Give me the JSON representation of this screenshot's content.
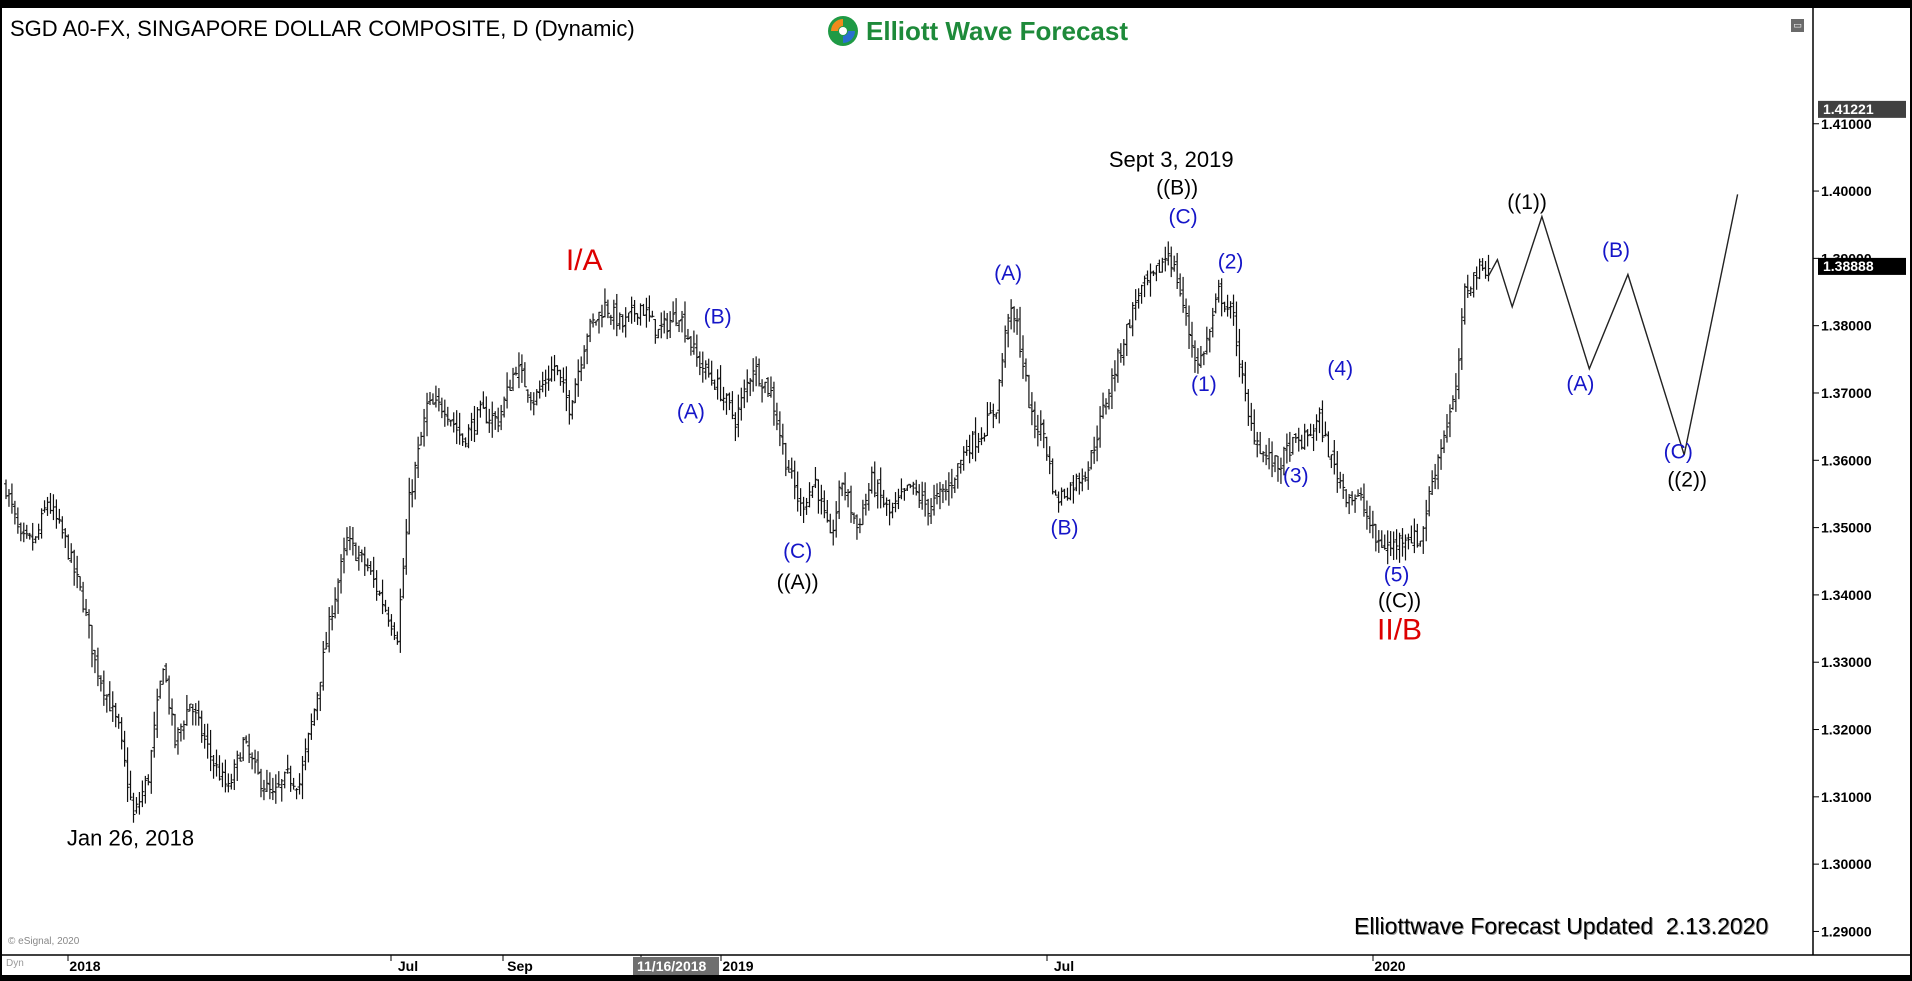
{
  "header": {
    "title": "SGD A0-FX, SINGAPORE DOLLAR COMPOSITE, D (Dynamic)",
    "brand": "Elliott Wave Forecast"
  },
  "footer": {
    "updated": "Elliottwave Forecast Updated  2.13.2020",
    "copyright": "© eSignal, 2020",
    "dyn": "Dyn"
  },
  "chart_data": {
    "type": "candlestick",
    "title": "SGD A0-FX, SINGAPORE DOLLAR COMPOSITE, D (Dynamic)",
    "ylim": [
      1.2865,
      1.4217
    ],
    "y_ticks": [
      "1.41000",
      "1.40000",
      "1.39000",
      "1.38000",
      "1.37000",
      "1.36000",
      "1.35000",
      "1.34000",
      "1.33000",
      "1.32000",
      "1.31000",
      "1.30000",
      "1.29000"
    ],
    "x_tick_labels": [
      "2018",
      "Jul",
      "Sep",
      "11/16/2018",
      "2019",
      "Jul",
      "2020"
    ],
    "cursor_date": "11/16/2018",
    "price_markers": [
      {
        "label": "1.41221",
        "value": 1.41221
      },
      {
        "label": "1.38888",
        "value": 1.38888
      }
    ],
    "price_anchors": [
      {
        "t": 0,
        "p": 1.356
      },
      {
        "t": 5,
        "p": 1.348
      },
      {
        "t": 10,
        "p": 1.348
      },
      {
        "t": 14,
        "p": 1.354
      },
      {
        "t": 20,
        "p": 1.348
      },
      {
        "t": 26,
        "p": 1.339
      },
      {
        "t": 30,
        "p": 1.33
      },
      {
        "t": 38,
        "p": 1.32
      },
      {
        "t": 43,
        "p": 1.307
      },
      {
        "t": 48,
        "p": 1.313
      },
      {
        "t": 53,
        "p": 1.33
      },
      {
        "t": 57,
        "p": 1.318
      },
      {
        "t": 62,
        "p": 1.324
      },
      {
        "t": 70,
        "p": 1.315
      },
      {
        "t": 75,
        "p": 1.311
      },
      {
        "t": 80,
        "p": 1.318
      },
      {
        "t": 85,
        "p": 1.313
      },
      {
        "t": 90,
        "p": 1.31
      },
      {
        "t": 95,
        "p": 1.313
      },
      {
        "t": 99,
        "p": 1.312
      },
      {
        "t": 104,
        "p": 1.323
      },
      {
        "t": 110,
        "p": 1.338
      },
      {
        "t": 115,
        "p": 1.348
      },
      {
        "t": 122,
        "p": 1.344
      },
      {
        "t": 128,
        "p": 1.338
      },
      {
        "t": 132,
        "p": 1.334
      },
      {
        "t": 136,
        "p": 1.354
      },
      {
        "t": 142,
        "p": 1.368
      },
      {
        "t": 148,
        "p": 1.368
      },
      {
        "t": 154,
        "p": 1.363
      },
      {
        "t": 160,
        "p": 1.367
      },
      {
        "t": 166,
        "p": 1.366
      },
      {
        "t": 172,
        "p": 1.374
      },
      {
        "t": 178,
        "p": 1.369
      },
      {
        "t": 185,
        "p": 1.374
      },
      {
        "t": 190,
        "p": 1.368
      },
      {
        "t": 196,
        "p": 1.379
      },
      {
        "t": 202,
        "p": 1.383
      },
      {
        "t": 208,
        "p": 1.38
      },
      {
        "t": 214,
        "p": 1.383
      },
      {
        "t": 220,
        "p": 1.379
      },
      {
        "t": 227,
        "p": 1.382
      },
      {
        "t": 233,
        "p": 1.375
      },
      {
        "t": 240,
        "p": 1.371
      },
      {
        "t": 246,
        "p": 1.366
      },
      {
        "t": 252,
        "p": 1.374
      },
      {
        "t": 258,
        "p": 1.37
      },
      {
        "t": 263,
        "p": 1.36
      },
      {
        "t": 268,
        "p": 1.353
      },
      {
        "t": 273,
        "p": 1.357
      },
      {
        "t": 278,
        "p": 1.348
      },
      {
        "t": 282,
        "p": 1.357
      },
      {
        "t": 287,
        "p": 1.35
      },
      {
        "t": 292,
        "p": 1.357
      },
      {
        "t": 298,
        "p": 1.352
      },
      {
        "t": 305,
        "p": 1.356
      },
      {
        "t": 311,
        "p": 1.353
      },
      {
        "t": 318,
        "p": 1.356
      },
      {
        "t": 324,
        "p": 1.362
      },
      {
        "t": 329,
        "p": 1.364
      },
      {
        "t": 334,
        "p": 1.368
      },
      {
        "t": 338,
        "p": 1.382
      },
      {
        "t": 341,
        "p": 1.38
      },
      {
        "t": 346,
        "p": 1.366
      },
      {
        "t": 350,
        "p": 1.364
      },
      {
        "t": 354,
        "p": 1.354
      },
      {
        "t": 359,
        "p": 1.356
      },
      {
        "t": 365,
        "p": 1.359
      },
      {
        "t": 371,
        "p": 1.369
      },
      {
        "t": 377,
        "p": 1.378
      },
      {
        "t": 382,
        "p": 1.385
      },
      {
        "t": 387,
        "p": 1.387
      },
      {
        "t": 392,
        "p": 1.391
      },
      {
        "t": 395,
        "p": 1.387
      },
      {
        "t": 399,
        "p": 1.379
      },
      {
        "t": 402,
        "p": 1.374
      },
      {
        "t": 406,
        "p": 1.379
      },
      {
        "t": 409,
        "p": 1.385
      },
      {
        "t": 414,
        "p": 1.381
      },
      {
        "t": 419,
        "p": 1.366
      },
      {
        "t": 424,
        "p": 1.361
      },
      {
        "t": 429,
        "p": 1.359
      },
      {
        "t": 433,
        "p": 1.362
      },
      {
        "t": 438,
        "p": 1.363
      },
      {
        "t": 443,
        "p": 1.366
      },
      {
        "t": 447,
        "p": 1.36
      },
      {
        "t": 452,
        "p": 1.355
      },
      {
        "t": 457,
        "p": 1.354
      },
      {
        "t": 462,
        "p": 1.348
      },
      {
        "t": 467,
        "p": 1.347
      },
      {
        "t": 472,
        "p": 1.349
      },
      {
        "t": 477,
        "p": 1.348
      },
      {
        "t": 481,
        "p": 1.357
      },
      {
        "t": 485,
        "p": 1.364
      },
      {
        "t": 489,
        "p": 1.37
      },
      {
        "t": 492,
        "p": 1.385
      },
      {
        "t": 496,
        "p": 1.388
      },
      {
        "t": 500,
        "p": 1.389
      }
    ],
    "projection": [
      {
        "t": 500,
        "p": 1.3874
      },
      {
        "t": 503,
        "p": 1.3898
      },
      {
        "t": 508,
        "p": 1.3828
      },
      {
        "t": 518,
        "p": 1.3962
      },
      {
        "t": 534,
        "p": 1.3736
      },
      {
        "t": 547,
        "p": 1.3876
      },
      {
        "t": 566,
        "p": 1.3608
      },
      {
        "t": 584,
        "p": 1.3995
      }
    ],
    "annotations": [
      {
        "text": "Jan 26, 2018",
        "t": 42,
        "p": 1.3028,
        "color": "#000000",
        "size": 22
      },
      {
        "text": "I/A",
        "t": 195,
        "p": 1.3883,
        "color": "#dd0000",
        "size": 30
      },
      {
        "text": "(B)",
        "t": 240,
        "p": 1.3803,
        "color": "#1515c8",
        "size": 21
      },
      {
        "text": "(A)",
        "t": 231,
        "p": 1.3662,
        "color": "#1515c8",
        "size": 21
      },
      {
        "text": "(C)",
        "t": 267,
        "p": 1.3455,
        "color": "#1515c8",
        "size": 21
      },
      {
        "text": "((A))",
        "t": 267,
        "p": 1.3409,
        "color": "#000000",
        "size": 21
      },
      {
        "text": "(A)",
        "t": 338,
        "p": 1.3868,
        "color": "#1515c8",
        "size": 21
      },
      {
        "text": "(B)",
        "t": 357,
        "p": 1.349,
        "color": "#1515c8",
        "size": 21
      },
      {
        "text": "Sept 3, 2019",
        "t": 393,
        "p": 1.4036,
        "color": "#000000",
        "size": 22
      },
      {
        "text": "((B))",
        "t": 395,
        "p": 1.3995,
        "color": "#000000",
        "size": 21
      },
      {
        "text": "(C)",
        "t": 397,
        "p": 1.3952,
        "color": "#1515c8",
        "size": 21
      },
      {
        "text": "(2)",
        "t": 413,
        "p": 1.3885,
        "color": "#1515c8",
        "size": 21
      },
      {
        "text": "(1)",
        "t": 404,
        "p": 1.3703,
        "color": "#1515c8",
        "size": 21
      },
      {
        "text": "(4)",
        "t": 450,
        "p": 1.3726,
        "color": "#1515c8",
        "size": 21
      },
      {
        "text": "(3)",
        "t": 435,
        "p": 1.3567,
        "color": "#1515c8",
        "size": 21
      },
      {
        "text": "(5)",
        "t": 469,
        "p": 1.342,
        "color": "#1515c8",
        "size": 21
      },
      {
        "text": "((C))",
        "t": 470,
        "p": 1.3381,
        "color": "#000000",
        "size": 21
      },
      {
        "text": "II/B",
        "t": 470,
        "p": 1.3334,
        "color": "#dd0000",
        "size": 30
      },
      {
        "text": "((1))",
        "t": 513,
        "p": 1.3973,
        "color": "#000000",
        "size": 21
      },
      {
        "text": "(B)",
        "t": 543,
        "p": 1.3902,
        "color": "#1515c8",
        "size": 21
      },
      {
        "text": "(A)",
        "t": 531,
        "p": 1.3704,
        "color": "#1515c8",
        "size": 21
      },
      {
        "text": "(C)",
        "t": 564,
        "p": 1.3603,
        "color": "#1515c8",
        "size": 21
      },
      {
        "text": "((2))",
        "t": 567,
        "p": 1.3561,
        "color": "#000000",
        "size": 21
      }
    ],
    "grid": false,
    "legend": "none"
  }
}
